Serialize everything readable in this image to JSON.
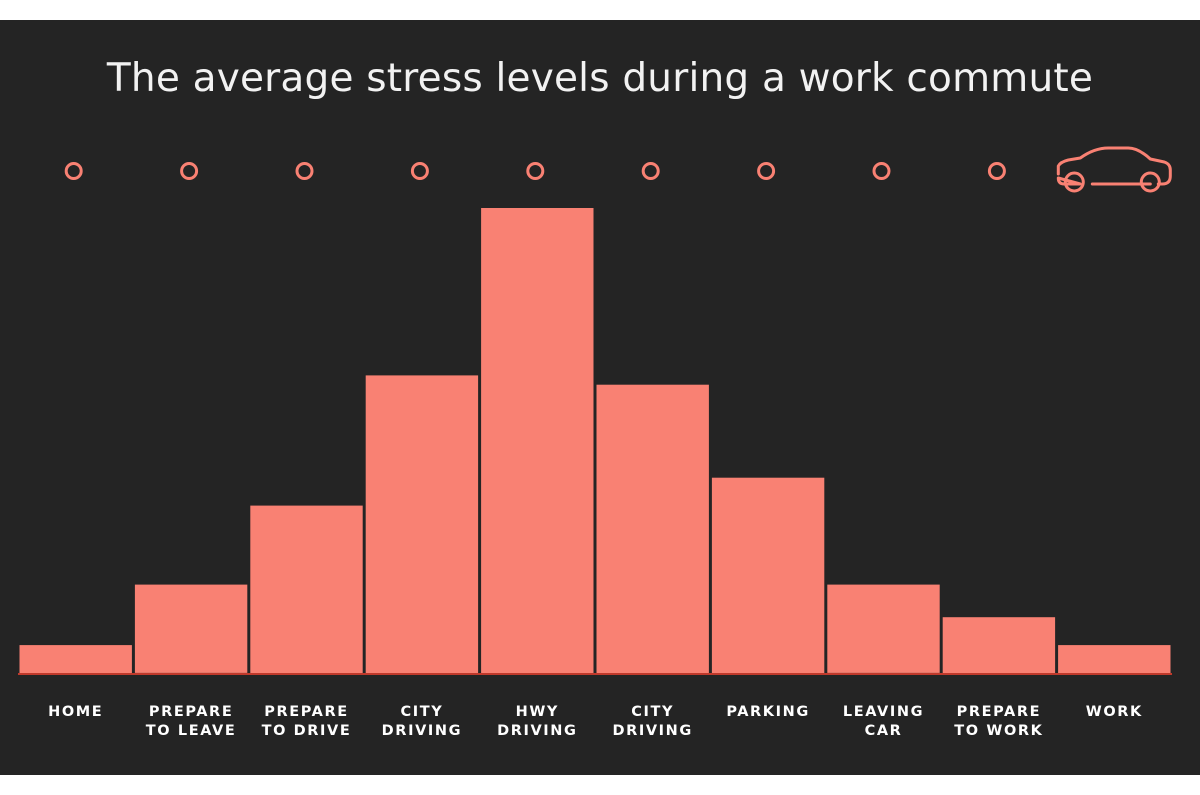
{
  "chart_data": {
    "type": "bar",
    "title": "The average stress levels during a work commute",
    "categories": [
      "HOME",
      "PREPARE TO LEAVE",
      "PREPARE TO DRIVE",
      "CITY DRIVING",
      "HWY DRIVING",
      "CITY DRIVING",
      "PARKING",
      "LEAVING CAR",
      "PREPARE TO WORK",
      "WORK"
    ],
    "category_lines": [
      [
        "HOME"
      ],
      [
        "PREPARE",
        "TO LEAVE"
      ],
      [
        "PREPARE",
        "TO DRIVE"
      ],
      [
        "CITY",
        "DRIVING"
      ],
      [
        "HWY",
        "DRIVING"
      ],
      [
        "CITY",
        "DRIVING"
      ],
      [
        "PARKING"
      ],
      [
        "LEAVING",
        "CAR"
      ],
      [
        "PREPARE",
        "TO WORK"
      ],
      [
        "WORK"
      ]
    ],
    "values": [
      6,
      19,
      36,
      64,
      100,
      62,
      42,
      19,
      12,
      6
    ],
    "ylim": [
      0,
      100
    ],
    "xlabel": "",
    "ylabel": "",
    "grid": false,
    "colors": {
      "bar": "#f98173",
      "background": "#242424",
      "baseline": "#c0392b",
      "marker": "#f98173",
      "text": "#ffffff"
    },
    "icons": {
      "progress_marker": "circle-marker-icon",
      "end_marker": "car-icon"
    }
  }
}
